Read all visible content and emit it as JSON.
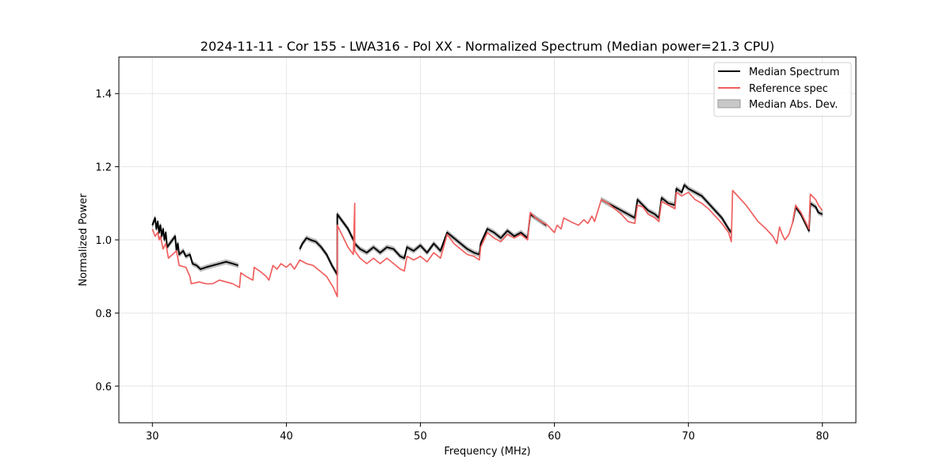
{
  "chart_data": {
    "type": "line",
    "title": "2024-11-11 - Cor 155 - LWA316 - Pol XX - Normalized Spectrum (Median power=21.3 CPU)",
    "xlabel": "Frequency (MHz)",
    "ylabel": "Normalized Power",
    "xlim": [
      27.5,
      82.5
    ],
    "ylim": [
      0.5,
      1.5
    ],
    "xticks": [
      30,
      40,
      50,
      60,
      70,
      80
    ],
    "xtick_labels": [
      "30",
      "40",
      "50",
      "60",
      "70",
      "80"
    ],
    "yticks": [
      0.6,
      0.8,
      1.0,
      1.2,
      1.4
    ],
    "ytick_labels": [
      "0.6",
      "0.8",
      "1.0",
      "1.2",
      "1.4"
    ],
    "grid": true,
    "legend_position": "top-right",
    "legend": [
      "Median Spectrum",
      "Reference spec",
      "Median Abs. Dev."
    ],
    "colors": {
      "median": "#000000",
      "reference": "#f0605f",
      "mad_fill": "#c8c8c8",
      "mad_edge": "#9a9a9a",
      "grid": "#e6e6e6"
    },
    "series": [
      {
        "name": "Median Spectrum",
        "segments": [
          [
            [
              30.0,
              1.04
            ],
            [
              30.2,
              1.06
            ],
            [
              30.3,
              1.03
            ],
            [
              30.4,
              1.05
            ],
            [
              30.5,
              1.02
            ],
            [
              30.6,
              1.04
            ],
            [
              30.7,
              1.01
            ],
            [
              30.8,
              1.03
            ],
            [
              30.9,
              1.0
            ],
            [
              31.0,
              1.02
            ],
            [
              31.1,
              0.98
            ],
            [
              31.3,
              0.99
            ],
            [
              31.5,
              1.0
            ],
            [
              31.7,
              1.01
            ],
            [
              31.8,
              0.97
            ],
            [
              31.9,
              0.99
            ],
            [
              32.0,
              0.96
            ],
            [
              32.3,
              0.97
            ],
            [
              32.5,
              0.955
            ],
            [
              32.8,
              0.96
            ],
            [
              33.0,
              0.935
            ],
            [
              33.3,
              0.93
            ],
            [
              33.6,
              0.92
            ],
            [
              34.0,
              0.925
            ],
            [
              34.5,
              0.93
            ],
            [
              35.0,
              0.935
            ],
            [
              35.5,
              0.94
            ],
            [
              36.0,
              0.935
            ],
            [
              36.4,
              0.93
            ]
          ],
          [
            [
              41.0,
              0.975
            ],
            [
              41.2,
              0.99
            ],
            [
              41.5,
              1.005
            ],
            [
              41.8,
              1.0
            ],
            [
              42.2,
              0.995
            ],
            [
              42.6,
              0.98
            ],
            [
              43.0,
              0.96
            ],
            [
              43.4,
              0.93
            ],
            [
              43.8,
              0.905
            ],
            [
              43.8,
              1.07
            ],
            [
              44.2,
              1.05
            ],
            [
              44.6,
              1.03
            ],
            [
              45.0,
              1.0
            ],
            [
              45.1,
              0.99
            ],
            [
              45.5,
              0.975
            ],
            [
              46.0,
              0.965
            ],
            [
              46.5,
              0.98
            ],
            [
              47.0,
              0.965
            ],
            [
              47.5,
              0.98
            ],
            [
              48.0,
              0.975
            ],
            [
              48.5,
              0.955
            ],
            [
              48.8,
              0.95
            ],
            [
              49.0,
              0.98
            ],
            [
              49.5,
              0.97
            ],
            [
              50.0,
              0.985
            ],
            [
              50.5,
              0.965
            ],
            [
              51.0,
              0.99
            ],
            [
              51.5,
              0.97
            ],
            [
              52.0,
              1.02
            ],
            [
              52.5,
              1.005
            ],
            [
              53.0,
              0.99
            ],
            [
              53.5,
              0.975
            ],
            [
              54.0,
              0.965
            ],
            [
              54.4,
              0.96
            ],
            [
              54.5,
              0.99
            ],
            [
              55.0,
              1.03
            ],
            [
              55.5,
              1.02
            ],
            [
              56.0,
              1.005
            ],
            [
              56.5,
              1.025
            ],
            [
              57.0,
              1.01
            ],
            [
              57.5,
              1.02
            ],
            [
              58.0,
              1.005
            ],
            [
              58.2,
              1.07
            ],
            [
              58.6,
              1.06
            ],
            [
              59.0,
              1.05
            ],
            [
              59.4,
              1.04
            ]
          ],
          [
            [
              63.5,
              1.11
            ],
            [
              64.0,
              1.1
            ],
            [
              64.5,
              1.09
            ],
            [
              65.0,
              1.08
            ],
            [
              65.5,
              1.07
            ],
            [
              66.0,
              1.06
            ],
            [
              66.2,
              1.11
            ],
            [
              66.6,
              1.095
            ],
            [
              67.0,
              1.08
            ],
            [
              67.5,
              1.07
            ],
            [
              67.8,
              1.06
            ],
            [
              68.0,
              1.115
            ],
            [
              68.5,
              1.1
            ],
            [
              69.0,
              1.095
            ],
            [
              69.1,
              1.14
            ],
            [
              69.5,
              1.13
            ],
            [
              69.7,
              1.15
            ],
            [
              70.0,
              1.14
            ],
            [
              70.5,
              1.13
            ],
            [
              71.0,
              1.12
            ],
            [
              71.5,
              1.1
            ],
            [
              72.0,
              1.08
            ],
            [
              72.5,
              1.06
            ],
            [
              73.0,
              1.03
            ],
            [
              73.2,
              1.02
            ]
          ],
          [
            [
              77.8,
              1.05
            ],
            [
              78.0,
              1.09
            ],
            [
              78.4,
              1.07
            ],
            [
              78.8,
              1.04
            ],
            [
              79.0,
              1.025
            ],
            [
              79.1,
              1.1
            ],
            [
              79.5,
              1.09
            ],
            [
              79.7,
              1.075
            ],
            [
              80.0,
              1.07
            ]
          ]
        ]
      },
      {
        "name": "Reference spec",
        "segments": [
          [
            [
              30.0,
              1.03
            ],
            [
              30.2,
              1.01
            ],
            [
              30.4,
              1.02
            ],
            [
              30.5,
              1.0
            ],
            [
              30.6,
              1.01
            ],
            [
              30.8,
              0.975
            ],
            [
              31.0,
              0.99
            ],
            [
              31.2,
              0.95
            ],
            [
              31.5,
              0.96
            ],
            [
              31.8,
              0.97
            ],
            [
              32.0,
              0.93
            ],
            [
              32.5,
              0.925
            ],
            [
              32.8,
              0.9
            ],
            [
              32.9,
              0.88
            ],
            [
              33.5,
              0.885
            ],
            [
              34.0,
              0.88
            ],
            [
              34.5,
              0.88
            ],
            [
              35.0,
              0.89
            ],
            [
              35.5,
              0.885
            ],
            [
              36.0,
              0.88
            ],
            [
              36.5,
              0.87
            ],
            [
              36.6,
              0.91
            ],
            [
              37.0,
              0.9
            ],
            [
              37.5,
              0.89
            ],
            [
              37.6,
              0.925
            ],
            [
              38.0,
              0.915
            ],
            [
              38.5,
              0.9
            ],
            [
              38.7,
              0.89
            ],
            [
              39.0,
              0.93
            ],
            [
              39.3,
              0.92
            ],
            [
              39.6,
              0.935
            ],
            [
              40.0,
              0.925
            ],
            [
              40.3,
              0.935
            ],
            [
              40.6,
              0.92
            ],
            [
              41.0,
              0.945
            ],
            [
              41.5,
              0.935
            ],
            [
              42.0,
              0.93
            ],
            [
              42.5,
              0.915
            ],
            [
              43.0,
              0.9
            ],
            [
              43.5,
              0.87
            ],
            [
              43.8,
              0.845
            ],
            [
              43.8,
              1.04
            ],
            [
              44.2,
              1.01
            ],
            [
              44.6,
              0.98
            ],
            [
              45.0,
              0.96
            ],
            [
              45.1,
              1.1
            ],
            [
              45.1,
              0.97
            ],
            [
              45.5,
              0.95
            ],
            [
              46.0,
              0.935
            ],
            [
              46.5,
              0.95
            ],
            [
              47.0,
              0.935
            ],
            [
              47.5,
              0.95
            ],
            [
              48.0,
              0.935
            ],
            [
              48.5,
              0.92
            ],
            [
              48.8,
              0.915
            ],
            [
              49.0,
              0.955
            ],
            [
              49.5,
              0.945
            ],
            [
              50.0,
              0.955
            ],
            [
              50.5,
              0.94
            ],
            [
              51.0,
              0.965
            ],
            [
              51.5,
              0.95
            ],
            [
              52.0,
              1.015
            ],
            [
              52.5,
              0.99
            ],
            [
              53.0,
              0.975
            ],
            [
              53.5,
              0.96
            ],
            [
              54.0,
              0.955
            ],
            [
              54.4,
              0.945
            ],
            [
              54.5,
              0.98
            ],
            [
              55.0,
              1.02
            ],
            [
              55.5,
              1.005
            ],
            [
              56.0,
              0.995
            ],
            [
              56.5,
              1.015
            ],
            [
              57.0,
              1.005
            ],
            [
              57.5,
              1.015
            ],
            [
              58.0,
              1.0
            ],
            [
              58.2,
              1.075
            ],
            [
              58.6,
              1.06
            ],
            [
              59.0,
              1.05
            ],
            [
              59.5,
              1.04
            ],
            [
              60.0,
              1.02
            ],
            [
              60.2,
              1.04
            ],
            [
              60.5,
              1.03
            ],
            [
              60.7,
              1.06
            ],
            [
              61.2,
              1.05
            ],
            [
              61.8,
              1.04
            ],
            [
              62.2,
              1.055
            ],
            [
              62.5,
              1.045
            ],
            [
              62.8,
              1.065
            ],
            [
              63.0,
              1.05
            ],
            [
              63.5,
              1.11
            ],
            [
              64.0,
              1.1
            ],
            [
              64.5,
              1.085
            ],
            [
              65.0,
              1.07
            ],
            [
              65.5,
              1.05
            ],
            [
              66.0,
              1.045
            ],
            [
              66.2,
              1.095
            ],
            [
              66.6,
              1.09
            ],
            [
              67.0,
              1.07
            ],
            [
              67.5,
              1.06
            ],
            [
              67.8,
              1.05
            ],
            [
              68.0,
              1.105
            ],
            [
              68.5,
              1.095
            ],
            [
              69.0,
              1.085
            ],
            [
              69.1,
              1.13
            ],
            [
              69.5,
              1.12
            ],
            [
              70.0,
              1.13
            ],
            [
              70.5,
              1.11
            ],
            [
              71.0,
              1.1
            ],
            [
              71.5,
              1.085
            ],
            [
              72.0,
              1.065
            ],
            [
              72.5,
              1.045
            ],
            [
              73.0,
              1.02
            ],
            [
              73.2,
              0.995
            ],
            [
              73.3,
              1.135
            ],
            [
              73.8,
              1.115
            ],
            [
              74.3,
              1.095
            ],
            [
              74.8,
              1.07
            ],
            [
              75.2,
              1.05
            ],
            [
              75.8,
              1.03
            ],
            [
              76.3,
              1.01
            ],
            [
              76.6,
              0.99
            ],
            [
              76.8,
              1.035
            ],
            [
              77.0,
              1.015
            ],
            [
              77.2,
              1.0
            ],
            [
              77.5,
              1.015
            ],
            [
              77.8,
              1.05
            ],
            [
              78.0,
              1.095
            ],
            [
              78.4,
              1.075
            ],
            [
              78.8,
              1.045
            ],
            [
              79.0,
              1.03
            ],
            [
              79.1,
              1.125
            ],
            [
              79.5,
              1.11
            ],
            [
              79.7,
              1.095
            ],
            [
              80.0,
              1.08
            ]
          ]
        ]
      }
    ]
  }
}
